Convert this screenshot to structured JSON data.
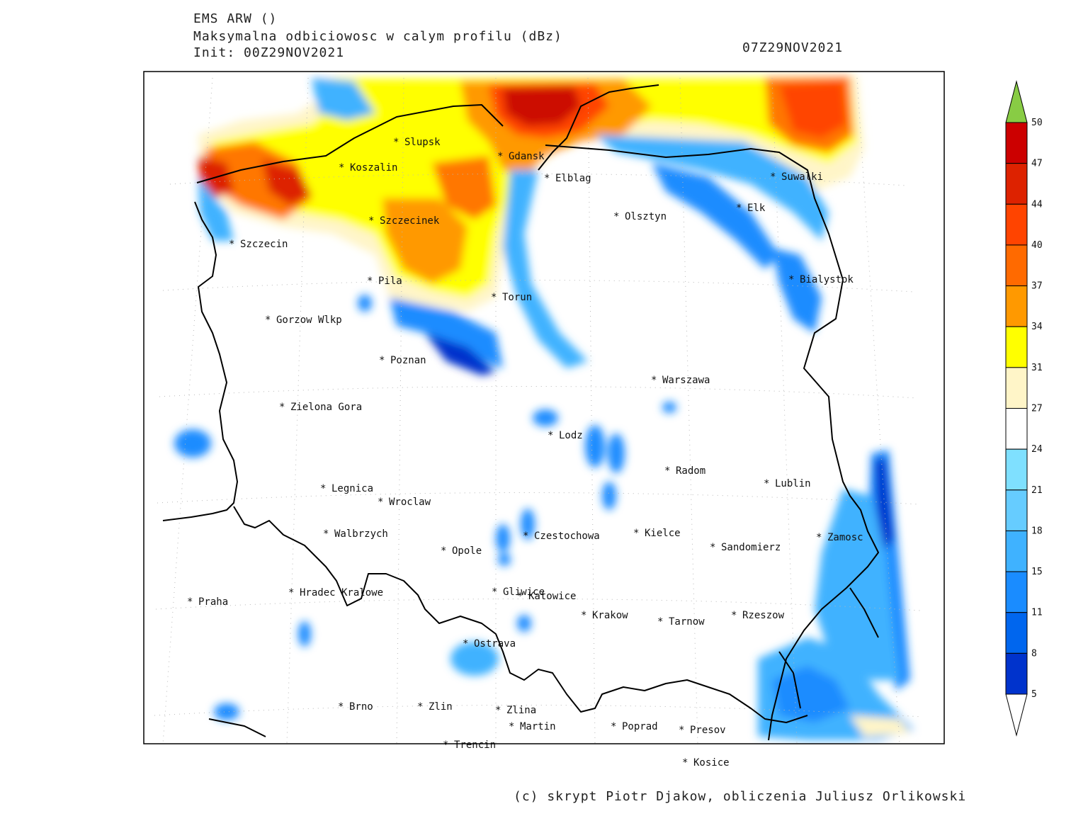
{
  "header": {
    "model": "EMS ARW ()",
    "field": "Maksymalna odbiciowosc w calym profilu (dBz)",
    "init": "Init: 00Z29NOV2021",
    "valid": "07Z29NOV2021"
  },
  "cities": [
    {
      "name": "Slupsk"
    },
    {
      "name": "Gdansk"
    },
    {
      "name": "Koszalin"
    },
    {
      "name": "Elblag"
    },
    {
      "name": "Suwalki"
    },
    {
      "name": "Elk"
    },
    {
      "name": "Olsztyn"
    },
    {
      "name": "Szczecinek"
    },
    {
      "name": "Szczecin"
    },
    {
      "name": "Bialystok"
    },
    {
      "name": "Pila"
    },
    {
      "name": "Torun"
    },
    {
      "name": "Gorzow Wlkp"
    },
    {
      "name": "Poznan"
    },
    {
      "name": "Warszawa"
    },
    {
      "name": "Zielona Gora"
    },
    {
      "name": "Lodz"
    },
    {
      "name": "Radom"
    },
    {
      "name": "Lublin"
    },
    {
      "name": "Legnica"
    },
    {
      "name": "Wroclaw"
    },
    {
      "name": "Walbrzych"
    },
    {
      "name": "Czestochowa"
    },
    {
      "name": "Kielce"
    },
    {
      "name": "Zamosc"
    },
    {
      "name": "Opole"
    },
    {
      "name": "Sandomierz"
    },
    {
      "name": "Praha"
    },
    {
      "name": "Hradec Kralowe"
    },
    {
      "name": "Gliwice"
    },
    {
      "name": "Katowice"
    },
    {
      "name": "Krakow"
    },
    {
      "name": "Tarnow"
    },
    {
      "name": "Rzeszow"
    },
    {
      "name": "Ostrava"
    },
    {
      "name": "Brno"
    },
    {
      "name": "Zlin"
    },
    {
      "name": "Zlina"
    },
    {
      "name": "Martin"
    },
    {
      "name": "Poprad"
    },
    {
      "name": "Presov"
    },
    {
      "name": "Trencin"
    },
    {
      "name": "Kosice"
    }
  ],
  "colorbar": {
    "levels": [
      "50",
      "47",
      "44",
      "40",
      "37",
      "34",
      "31",
      "27",
      "24",
      "21",
      "18",
      "15",
      "11",
      "8",
      "5"
    ],
    "colors": [
      "#cc0000",
      "#dd2200",
      "#ff4400",
      "#ff6a00",
      "#ff9900",
      "#ffff00",
      "#fff5c8",
      "#ffffff",
      "#7fe0ff",
      "#66ccff",
      "#3fb2ff",
      "#1a8cff",
      "#0066ee",
      "#0033cc",
      "#0000bb"
    ],
    "overflow_color": "#88cc44",
    "underflow_color": "#ffffff"
  },
  "credit": "(c) skrypt Piotr Djakow, obliczenia Juliusz Orlikowski"
}
